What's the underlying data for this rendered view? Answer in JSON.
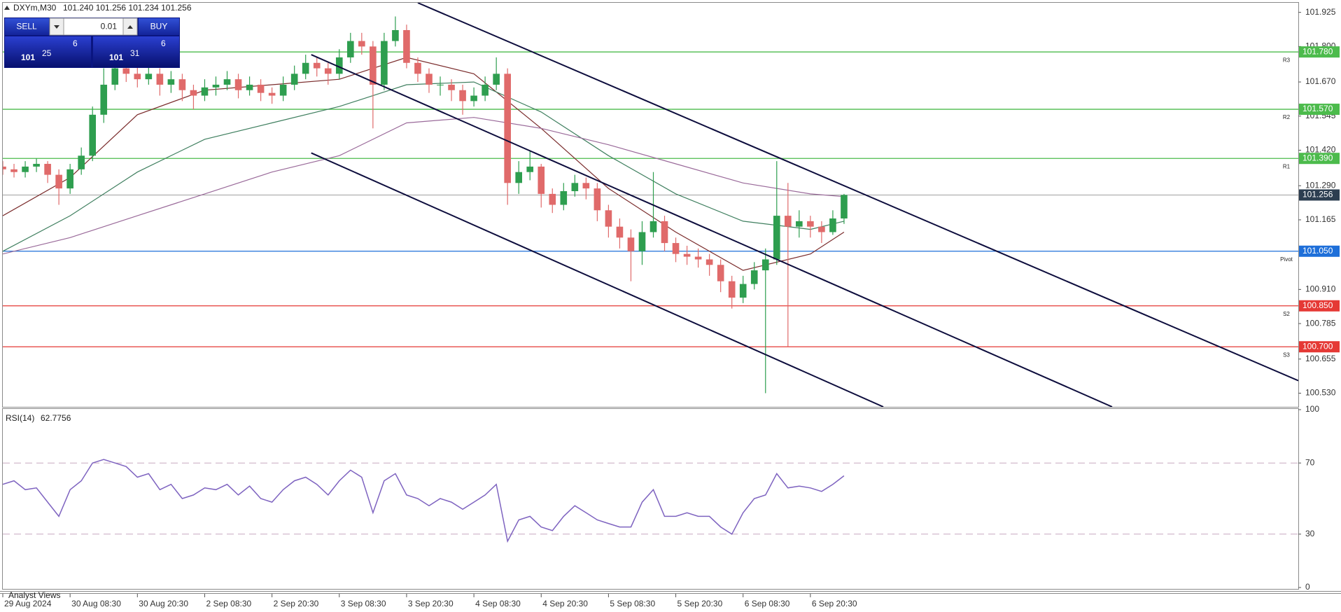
{
  "header": {
    "symbol": "DXYm,M30",
    "prices": "101.240 101.256 101.234 101.256"
  },
  "trade_panel": {
    "sell": "SELL",
    "lot": "0.01",
    "buy": "BUY",
    "bid": [
      "101",
      "25",
      "6"
    ],
    "ask": [
      "101",
      "31",
      "6"
    ]
  },
  "footer": "Analyst Views",
  "chart_data": [
    {
      "type": "candlestick",
      "up_color": "#2e9e4f",
      "down_color": "#e06a6a",
      "xlim": [
        0,
        115.5
      ],
      "xticks": [
        {
          "value": 0,
          "label": "29 Aug 2024"
        },
        {
          "value": 6,
          "label": "30 Aug 08:30"
        },
        {
          "value": 12,
          "label": "30 Aug 20:30"
        },
        {
          "value": 18,
          "label": "2 Sep 08:30"
        },
        {
          "value": 24,
          "label": "2 Sep 20:30"
        },
        {
          "value": 30,
          "label": "3 Sep 08:30"
        },
        {
          "value": 36,
          "label": "3 Sep 20:30"
        },
        {
          "value": 42,
          "label": "4 Sep 08:30"
        },
        {
          "value": 48,
          "label": "4 Sep 20:30"
        },
        {
          "value": 54,
          "label": "5 Sep 08:30"
        },
        {
          "value": 60,
          "label": "5 Sep 20:30"
        },
        {
          "value": 66,
          "label": "6 Sep 08:30"
        },
        {
          "value": 72,
          "label": "6 Sep 20:30"
        }
      ],
      "ylim": [
        100.48,
        101.96
      ],
      "yticks": [
        101.925,
        {
          "value": 101.8,
          "label": "101.800"
        },
        {
          "value": 101.67,
          "label": "101.670"
        },
        101.545,
        {
          "value": 101.42,
          "label": "101.420"
        },
        {
          "value": 101.29,
          "label": "101.290"
        },
        101.165,
        {
          "value": 100.91,
          "label": "100.910"
        },
        100.785,
        100.655,
        {
          "value": 100.53,
          "label": "100.530"
        }
      ],
      "ohlc": [
        [
          101.36,
          101.38,
          101.33,
          101.35
        ],
        [
          101.35,
          101.37,
          101.32,
          101.34
        ],
        [
          101.34,
          101.38,
          101.32,
          101.36
        ],
        [
          101.36,
          101.39,
          101.34,
          101.37
        ],
        [
          101.37,
          101.38,
          101.3,
          101.33
        ],
        [
          101.33,
          101.35,
          101.22,
          101.28
        ],
        [
          101.28,
          101.37,
          101.26,
          101.35
        ],
        [
          101.35,
          101.43,
          101.33,
          101.4
        ],
        [
          101.4,
          101.58,
          101.38,
          101.55
        ],
        [
          101.55,
          101.72,
          101.52,
          101.66
        ],
        [
          101.66,
          101.76,
          101.64,
          101.72
        ],
        [
          101.72,
          101.75,
          101.67,
          101.7
        ],
        [
          101.7,
          101.73,
          101.65,
          101.68
        ],
        [
          101.68,
          101.73,
          101.66,
          101.7
        ],
        [
          101.7,
          101.72,
          101.62,
          101.66
        ],
        [
          101.66,
          101.71,
          101.63,
          101.68
        ],
        [
          101.68,
          101.7,
          101.6,
          101.64
        ],
        [
          101.64,
          101.66,
          101.57,
          101.62
        ],
        [
          101.62,
          101.68,
          101.6,
          101.65
        ],
        [
          101.65,
          101.69,
          101.62,
          101.66
        ],
        [
          101.66,
          101.71,
          101.64,
          101.68
        ],
        [
          101.68,
          101.7,
          101.61,
          101.64
        ],
        [
          101.64,
          101.69,
          101.62,
          101.66
        ],
        [
          101.66,
          101.68,
          101.6,
          101.63
        ],
        [
          101.63,
          101.65,
          101.59,
          101.62
        ],
        [
          101.62,
          101.69,
          101.6,
          101.66
        ],
        [
          101.66,
          101.73,
          101.64,
          101.7
        ],
        [
          101.7,
          101.77,
          101.68,
          101.74
        ],
        [
          101.74,
          101.76,
          101.69,
          101.72
        ],
        [
          101.72,
          101.74,
          101.66,
          101.7
        ],
        [
          101.7,
          101.79,
          101.68,
          101.76
        ],
        [
          101.76,
          101.85,
          101.74,
          101.82
        ],
        [
          101.82,
          101.85,
          101.77,
          101.8
        ],
        [
          101.8,
          101.82,
          101.5,
          101.66
        ],
        [
          101.66,
          101.85,
          101.64,
          101.82
        ],
        [
          101.82,
          101.91,
          101.8,
          101.86
        ],
        [
          101.86,
          101.88,
          101.72,
          101.74
        ],
        [
          101.74,
          101.76,
          101.67,
          101.7
        ],
        [
          101.7,
          101.72,
          101.63,
          101.66
        ],
        [
          101.66,
          101.69,
          101.62,
          101.66
        ],
        [
          101.66,
          101.68,
          101.6,
          101.64
        ],
        [
          101.64,
          101.66,
          101.55,
          101.6
        ],
        [
          101.6,
          101.65,
          101.58,
          101.62
        ],
        [
          101.62,
          101.69,
          101.6,
          101.66
        ],
        [
          101.66,
          101.76,
          101.64,
          101.7
        ],
        [
          101.7,
          101.72,
          101.22,
          101.3
        ],
        [
          101.3,
          101.38,
          101.26,
          101.34
        ],
        [
          101.34,
          101.42,
          101.31,
          101.36
        ],
        [
          101.36,
          101.37,
          101.21,
          101.26
        ],
        [
          101.26,
          101.28,
          101.19,
          101.22
        ],
        [
          101.22,
          101.3,
          101.2,
          101.27
        ],
        [
          101.27,
          101.33,
          101.25,
          101.3
        ],
        [
          101.3,
          101.32,
          101.24,
          101.28
        ],
        [
          101.28,
          101.3,
          101.16,
          101.2
        ],
        [
          101.2,
          101.22,
          101.1,
          101.14
        ],
        [
          101.14,
          101.17,
          101.06,
          101.1
        ],
        [
          101.1,
          101.13,
          100.94,
          101.05
        ],
        [
          101.05,
          101.16,
          101.0,
          101.12
        ],
        [
          101.12,
          101.34,
          101.1,
          101.16
        ],
        [
          101.16,
          101.18,
          101.05,
          101.08
        ],
        [
          101.08,
          101.1,
          101.01,
          101.04
        ],
        [
          101.04,
          101.07,
          101.0,
          101.03
        ],
        [
          101.03,
          101.06,
          100.99,
          101.02
        ],
        [
          101.02,
          101.04,
          100.96,
          101.0
        ],
        [
          101.0,
          101.02,
          100.9,
          100.94
        ],
        [
          100.94,
          100.96,
          100.84,
          100.88
        ],
        [
          100.88,
          100.96,
          100.86,
          100.93
        ],
        [
          100.93,
          101.01,
          100.91,
          100.98
        ],
        [
          100.98,
          101.06,
          100.53,
          101.02
        ],
        [
          101.02,
          101.38,
          101.0,
          101.18
        ],
        [
          101.18,
          101.3,
          100.7,
          101.14
        ],
        [
          101.14,
          101.2,
          101.1,
          101.16
        ],
        [
          101.16,
          101.18,
          101.1,
          101.14
        ],
        [
          101.14,
          101.16,
          101.08,
          101.12
        ],
        [
          101.12,
          101.2,
          101.11,
          101.17
        ],
        [
          101.17,
          101.26,
          101.15,
          101.256
        ]
      ],
      "moving_averages": [
        {
          "color": "#7a2b2b",
          "x": [
            0,
            6,
            12,
            18,
            24,
            30,
            36,
            42,
            48,
            54,
            60,
            66,
            72,
            75
          ],
          "values": [
            101.18,
            101.32,
            101.55,
            101.64,
            101.66,
            101.68,
            101.76,
            101.7,
            101.5,
            101.28,
            101.12,
            100.98,
            101.04,
            101.12
          ]
        },
        {
          "color": "#3f7f5f",
          "x": [
            0,
            6,
            12,
            18,
            24,
            30,
            36,
            42,
            48,
            54,
            60,
            66,
            72,
            75
          ],
          "values": [
            101.05,
            101.18,
            101.34,
            101.46,
            101.52,
            101.58,
            101.66,
            101.67,
            101.56,
            101.4,
            101.26,
            101.16,
            101.13,
            101.16
          ]
        },
        {
          "color": "#9a6a9a",
          "x": [
            0,
            6,
            12,
            18,
            24,
            30,
            36,
            42,
            48,
            54,
            60,
            66,
            72,
            75
          ],
          "values": [
            101.04,
            101.1,
            101.18,
            101.26,
            101.34,
            101.4,
            101.52,
            101.54,
            101.5,
            101.44,
            101.37,
            101.3,
            101.26,
            101.25
          ]
        }
      ],
      "trendlines": [
        {
          "color": "#0d0d3d",
          "x": [
            37,
            115.5
          ],
          "values": [
            101.96,
            100.576
          ]
        },
        {
          "color": "#0d0d3d",
          "x": [
            27.5,
            98.9
          ],
          "values": [
            101.77,
            100.48
          ]
        },
        {
          "color": "#0d0d3d",
          "x": [
            27.5,
            78.5
          ],
          "values": [
            101.41,
            100.48
          ]
        }
      ],
      "levels": [
        {
          "name": "R3",
          "value": 101.78,
          "label": "101.780",
          "color": "#4cbb4c"
        },
        {
          "name": "R2",
          "value": 101.57,
          "label": "101.570",
          "color": "#4cbb4c"
        },
        {
          "name": "R1",
          "value": 101.39,
          "label": "101.390",
          "color": "#4cbb4c"
        },
        {
          "name": "Pivot",
          "value": 101.05,
          "label": "101.050",
          "color": "#1e6fd9"
        },
        {
          "name": "S2",
          "value": 100.85,
          "label": "100.850",
          "color": "#e53935"
        },
        {
          "name": "S3",
          "value": 100.7,
          "label": "100.700",
          "color": "#e53935"
        }
      ],
      "bid_line": {
        "value": 101.256,
        "label": "101.256",
        "color": "#2c3e50"
      }
    },
    {
      "type": "line",
      "title": "RSI(14)",
      "color": "#7e63c0",
      "ylim": [
        0,
        100
      ],
      "yticks": [
        0,
        30,
        70,
        100
      ],
      "levels": [
        30,
        70
      ],
      "values": [
        58,
        60,
        55,
        56,
        48,
        40,
        55,
        60,
        70,
        72,
        70,
        68,
        62,
        64,
        55,
        58,
        50,
        52,
        56,
        55,
        58,
        52,
        57,
        50,
        48,
        55,
        60,
        62,
        58,
        52,
        60,
        66,
        62,
        42,
        60,
        64,
        52,
        50,
        46,
        50,
        48,
        44,
        48,
        52,
        58,
        26,
        38,
        40,
        34,
        32,
        40,
        46,
        42,
        38,
        36,
        34,
        34,
        48,
        55,
        40,
        40,
        42,
        40,
        40,
        34,
        30,
        42,
        50,
        52,
        64,
        56,
        57,
        56,
        54,
        58,
        62.7756
      ]
    }
  ]
}
